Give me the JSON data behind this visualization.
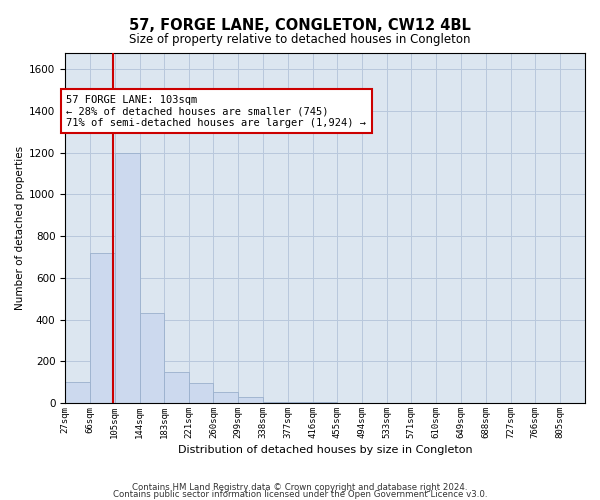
{
  "title": "57, FORGE LANE, CONGLETON, CW12 4BL",
  "subtitle": "Size of property relative to detached houses in Congleton",
  "xlabel": "Distribution of detached houses by size in Congleton",
  "ylabel": "Number of detached properties",
  "footnote1": "Contains HM Land Registry data © Crown copyright and database right 2024.",
  "footnote2": "Contains public sector information licensed under the Open Government Licence v3.0.",
  "property_size": 103,
  "property_label": "57 FORGE LANE: 103sqm",
  "annotation_line1": "← 28% of detached houses are smaller (745)",
  "annotation_line2": "71% of semi-detached houses are larger (1,924) →",
  "bar_color": "#ccd9ee",
  "bar_edge_color": "#9ab0cc",
  "vline_color": "#cc0000",
  "annotation_box_color": "#cc0000",
  "background_color": "#ffffff",
  "grid_color": "#b8c8dc",
  "ax_bg_color": "#dce6f0",
  "bins": [
    27,
    66,
    105,
    144,
    183,
    221,
    260,
    299,
    338,
    377,
    416,
    455,
    494,
    533,
    571,
    610,
    649,
    688,
    727,
    766,
    805
  ],
  "bin_labels": [
    "27sqm",
    "66sqm",
    "105sqm",
    "144sqm",
    "183sqm",
    "221sqm",
    "260sqm",
    "299sqm",
    "338sqm",
    "377sqm",
    "416sqm",
    "455sqm",
    "494sqm",
    "533sqm",
    "571sqm",
    "610sqm",
    "649sqm",
    "688sqm",
    "727sqm",
    "766sqm",
    "805sqm"
  ],
  "bar_heights": [
    100,
    720,
    1200,
    430,
    150,
    95,
    55,
    30,
    5,
    5,
    3,
    2,
    1,
    1,
    0,
    0,
    0,
    0,
    0,
    0
  ],
  "ylim": [
    0,
    1680
  ],
  "yticks": [
    0,
    200,
    400,
    600,
    800,
    1000,
    1200,
    1400,
    1600
  ]
}
